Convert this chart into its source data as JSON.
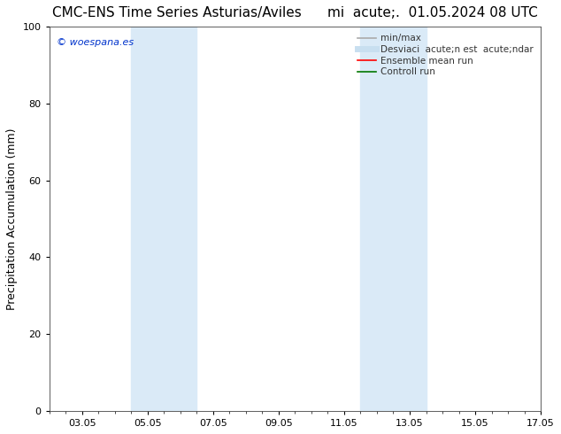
{
  "title": "CMC-ENS Time Series Asturias/Aviles",
  "subtitle": "mi  acute;.  01.05.2024 08 UTC",
  "ylabel": "Precipitation Accumulation (mm)",
  "ylim": [
    0,
    100
  ],
  "yticks": [
    0,
    20,
    40,
    60,
    80,
    100
  ],
  "xstart_days": 0,
  "xend_days": 15,
  "xtick_labels": [
    "03.05",
    "05.05",
    "07.05",
    "09.05",
    "11.05",
    "13.05",
    "15.05",
    "17.05"
  ],
  "xtick_positions": [
    1,
    3,
    5,
    7,
    9,
    11,
    13,
    15
  ],
  "shaded_bands": [
    {
      "xstart": 2.5,
      "xend": 4.5
    },
    {
      "xstart": 9.5,
      "xend": 11.5
    }
  ],
  "shaded_color": "#daeaf7",
  "background_color": "#ffffff",
  "watermark_text": "© woespana.es",
  "watermark_color": "#0033cc",
  "legend_entries": [
    {
      "label": "min/max",
      "color": "#aaaaaa",
      "lw": 1.2
    },
    {
      "label": "Desviaci  acute;n est  acute;ndar",
      "color": "#c8dff0",
      "lw": 5
    },
    {
      "label": "Ensemble mean run",
      "color": "#ff0000",
      "lw": 1.2
    },
    {
      "label": "Controll run",
      "color": "#007700",
      "lw": 1.2
    }
  ],
  "title_fontsize": 11,
  "axis_label_fontsize": 9,
  "tick_fontsize": 8,
  "legend_fontsize": 7.5,
  "watermark_fontsize": 8
}
